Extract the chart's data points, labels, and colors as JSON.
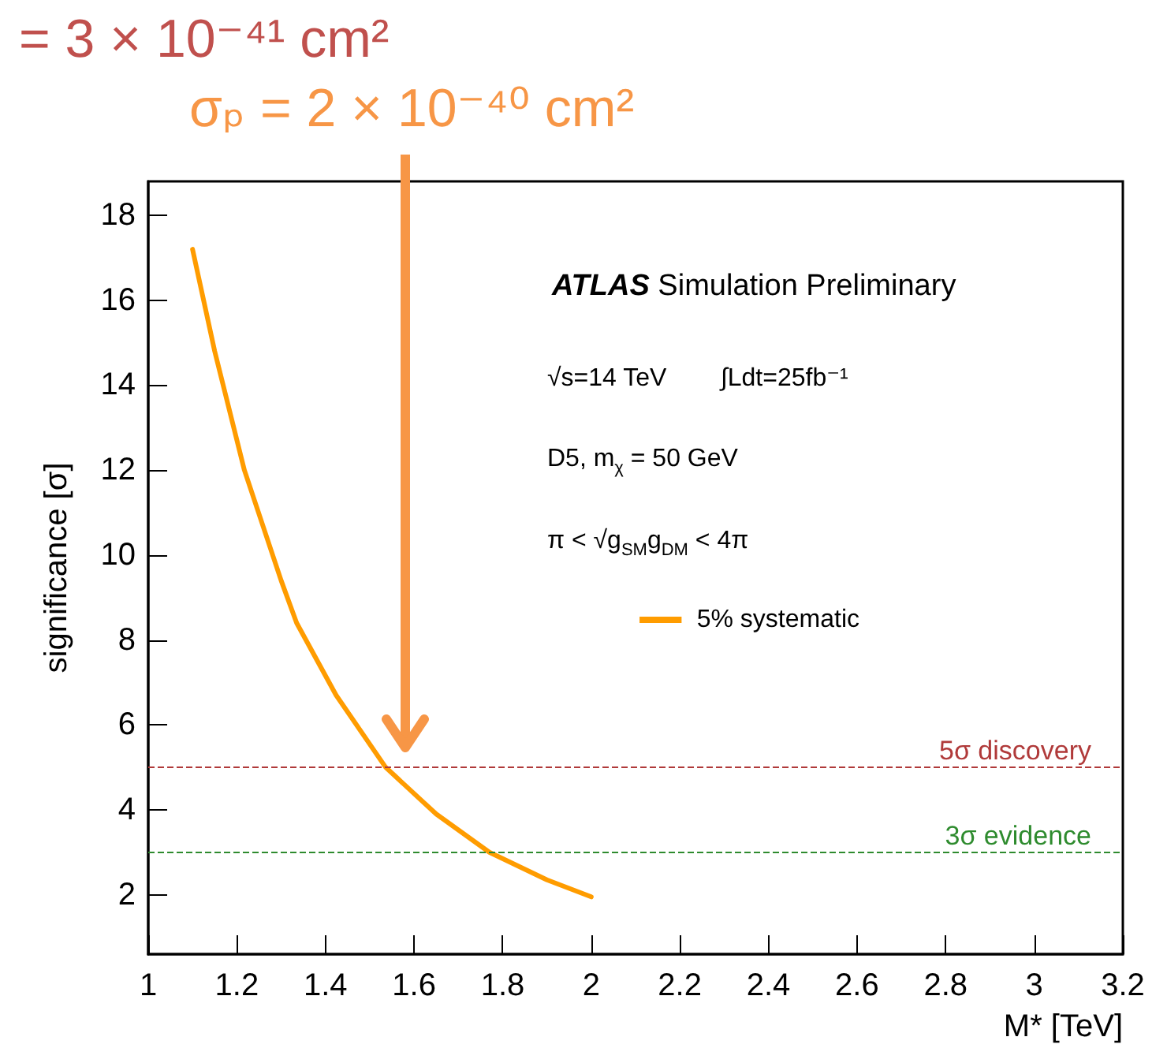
{
  "chart_data": {
    "type": "line",
    "xlabel": "M* [TeV]",
    "ylabel": "significance [σ]",
    "xlim": [
      1,
      3.2
    ],
    "ylim": [
      0.6,
      18.8
    ],
    "xticks": [
      1,
      1.2,
      1.4,
      1.6,
      1.8,
      2,
      2.2,
      2.4,
      2.6,
      2.8,
      3,
      3.2
    ],
    "yticks": [
      2,
      4,
      6,
      8,
      10,
      12,
      14,
      16,
      18
    ],
    "series": [
      {
        "name": "5% systematic",
        "color": "#ff9c00",
        "x": [
          1.1,
          1.15,
          1.217,
          1.3,
          1.335,
          1.424,
          1.536,
          1.65,
          1.77,
          1.9,
          2.0
        ],
        "values": [
          17.2,
          14.8,
          12.0,
          9.4,
          8.4,
          6.7,
          5.0,
          3.9,
          3.0,
          2.35,
          1.95
        ]
      }
    ],
    "ref_lines": [
      {
        "axis": "y",
        "value": 5,
        "label": "5σ discovery",
        "color": "#b03a3a",
        "line_style": "dashed"
      },
      {
        "axis": "y",
        "value": 3,
        "label": "3σ evidence",
        "color": "#2e8b2e",
        "line_style": "dashed"
      }
    ],
    "annotations": [
      "= 3 × 10⁻⁴¹ cm²",
      "σₚ = 2 × 10⁻⁴⁰ cm²",
      "ATLAS Simulation Preliminary",
      "√s=14 TeV",
      "∫Ldt=25fb⁻¹",
      "D5, m$_{χ}$ = 50 GeV",
      "π < √g$_{SM}$g$_{DM}$ < 4π"
    ],
    "legend": "right",
    "grid": false,
    "marker": "none",
    "line_style": "solid"
  }
}
